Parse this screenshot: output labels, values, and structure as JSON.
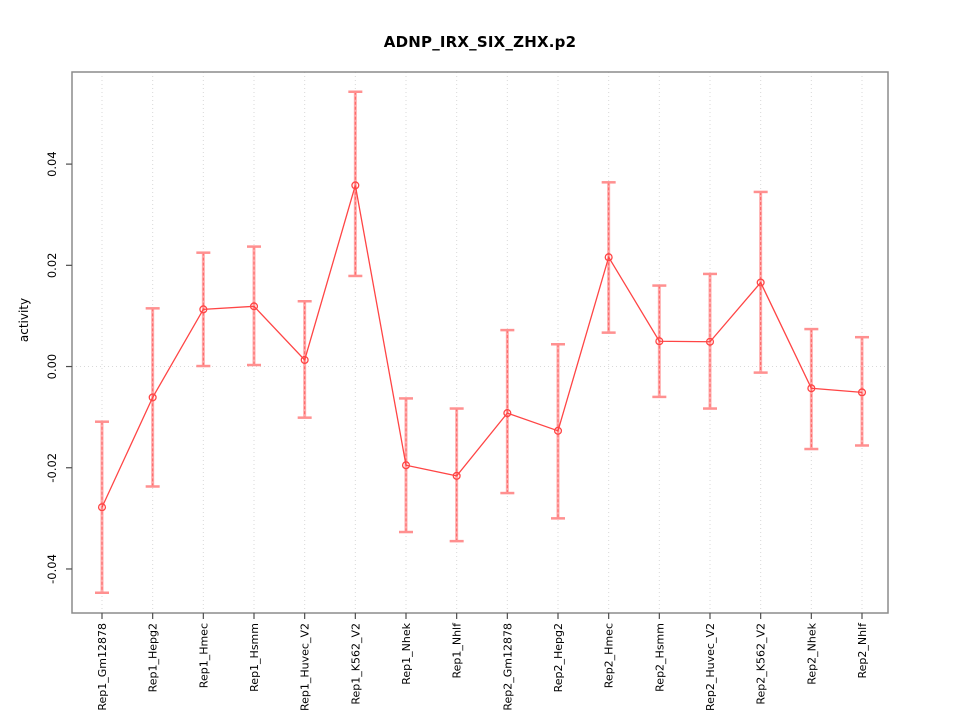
{
  "chart_data": {
    "type": "line",
    "title": "ADNP_IRX_SIX_ZHX.p2",
    "xlabel": "",
    "ylabel": "activity",
    "ylim": [
      -0.0487,
      0.0582
    ],
    "yticks": [
      -0.04,
      -0.02,
      0.0,
      0.02,
      0.04
    ],
    "grid": "dotted vertical line at each category; dotted horizontal line at y=0",
    "legend_position": "none",
    "marker": "open-circle",
    "error_bars": true,
    "categories": [
      "Rep1_Gm12878",
      "Rep1_Hepg2",
      "Rep1_Hmec",
      "Rep1_Hsmm",
      "Rep1_Huvec_V2",
      "Rep1_K562_V2",
      "Rep1_Nhek",
      "Rep1_Nhlf",
      "Rep2_Gm12878",
      "Rep2_Hepg2",
      "Rep2_Hmec",
      "Rep2_Hsmm",
      "Rep2_Huvec_V2",
      "Rep2_K562_V2",
      "Rep2_Nhek",
      "Rep2_Nhlf"
    ],
    "series": [
      {
        "name": "activity",
        "values": [
          -0.0278,
          -0.0061,
          0.0113,
          0.0119,
          0.0013,
          0.0358,
          -0.0195,
          -0.0216,
          -0.0092,
          -0.0127,
          0.0216,
          0.005,
          0.0049,
          0.0166,
          -0.0043,
          -0.0051
        ],
        "err_low": [
          -0.0447,
          -0.0237,
          0.0001,
          0.0003,
          -0.0101,
          0.0179,
          -0.0327,
          -0.0345,
          -0.025,
          -0.03,
          0.0067,
          -0.006,
          -0.0083,
          -0.0012,
          -0.0163,
          -0.0156
        ],
        "err_high": [
          -0.0109,
          0.0115,
          0.0225,
          0.0237,
          0.0129,
          0.0543,
          -0.0063,
          -0.0083,
          0.0072,
          0.0044,
          0.0364,
          0.016,
          0.0183,
          0.0345,
          0.0074,
          0.0058
        ]
      }
    ],
    "colors": {
      "line": "#ff4545",
      "marker": "#ff4545",
      "error_bar": "#ffa3a3",
      "error_bar_dash": "#ff6060",
      "error_cap": "#ff9090",
      "grid": "#d9d9d9",
      "box": "#8c8c8c",
      "tick": "#4d4d4d",
      "text": "#000000",
      "background": "#ffffff"
    }
  }
}
